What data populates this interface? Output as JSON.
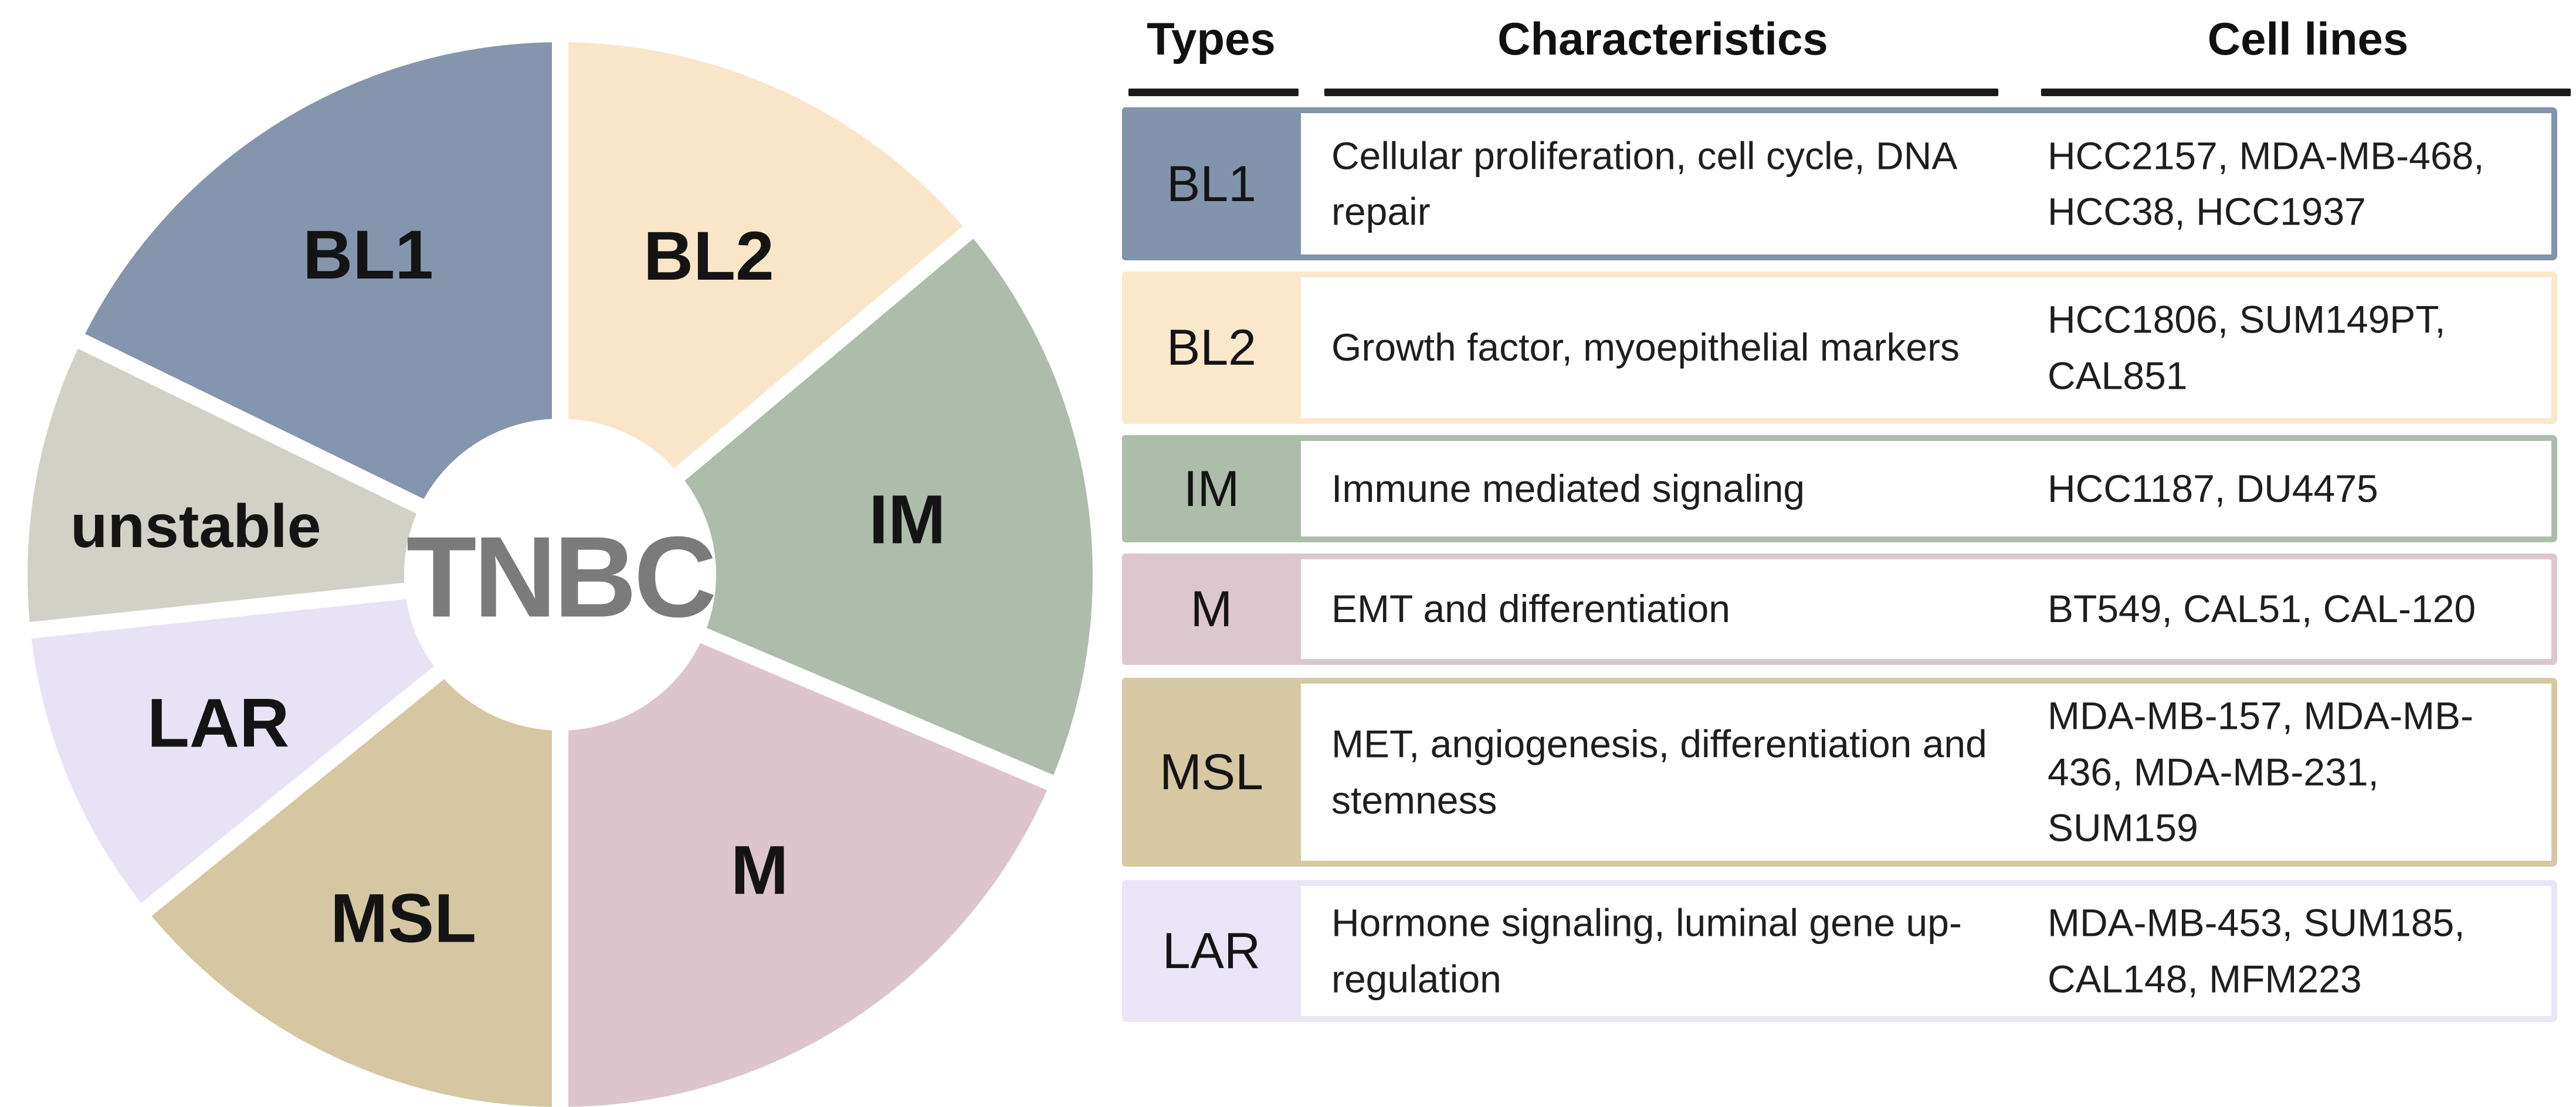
{
  "figure": {
    "center_label": "TNBC",
    "center_label_color": "#7b7b7b",
    "wedge_label_color": "#141414",
    "separator_color": "#ffffff",
    "segments": [
      {
        "label": "BL2",
        "color": "#f9e6c8",
        "start": 0,
        "end": 50,
        "label_angle": 25,
        "label_r": 0.66
      },
      {
        "label": "IM",
        "color": "#aebcab",
        "start": 50,
        "end": 113,
        "label_angle": 81,
        "label_r": 0.66
      },
      {
        "label": "M",
        "color": "#dcc5cc",
        "start": 113,
        "end": 180,
        "label_angle": 146,
        "label_r": 0.67
      },
      {
        "label": "MSL",
        "color": "#d4c7a1",
        "start": 180,
        "end": 231,
        "label_angle": 204.5,
        "label_r": 0.71
      },
      {
        "label": "LAR",
        "color": "#e7e3f4",
        "start": 231,
        "end": 264,
        "label_angle": 246.5,
        "label_r": 0.7
      },
      {
        "label": "unstable",
        "color": "#d2d1c7",
        "start": 264,
        "end": 296,
        "label_angle": 277.5,
        "label_r": 0.69
      },
      {
        "label": "BL1",
        "color": "#8595ad",
        "start": 296,
        "end": 360,
        "label_angle": 329,
        "label_r": 0.7
      }
    ]
  },
  "table": {
    "headers": [
      "Types",
      "Characteristics",
      "Cell lines"
    ],
    "rows": [
      {
        "type": "BL1",
        "color": "#8294ab",
        "characteristics": "Cellular proliferation, cell cycle, DNA repair",
        "cell_lines": "HCC2157, MDA-MB-468, HCC38, HCC1937"
      },
      {
        "type": "BL2",
        "color": "#fae8ca",
        "characteristics": "Growth factor, myoepithelial markers",
        "cell_lines": "HCC1806, SUM149PT, CAL851"
      },
      {
        "type": "IM",
        "color": "#aebcab",
        "characteristics": "Immune mediated signaling",
        "cell_lines": "HCC1187, DU4475"
      },
      {
        "type": "M",
        "color": "#ddc7ce",
        "characteristics": "EMT and differentiation",
        "cell_lines": "BT549, CAL51, CAL-120"
      },
      {
        "type": "MSL",
        "color": "#d5c8a2",
        "characteristics": "MET, angiogenesis, differentiation and stemness",
        "cell_lines": "MDA-MB-157, MDA-MB-436, MDA-MB-231, SUM159"
      },
      {
        "type": "LAR",
        "color": "#e9e5f6",
        "characteristics": "Hormone signaling, luminal gene up-regulation",
        "cell_lines": "MDA-MB-453, SUM185, CAL148, MFM223"
      }
    ]
  },
  "chart_data": [
    {
      "type": "pie",
      "title": "TNBC molecular subtypes wheel",
      "center_label": "TNBC",
      "donut": true,
      "categories": [
        "BL2",
        "IM",
        "M",
        "MSL",
        "LAR",
        "unstable",
        "BL1"
      ],
      "values_deg": [
        50,
        63,
        67,
        51,
        33,
        32,
        64
      ],
      "colors": [
        "#f9e6c8",
        "#aebcab",
        "#dcc5cc",
        "#d4c7a1",
        "#e7e3f4",
        "#d2d1c7",
        "#8595ad"
      ],
      "legend_position": "none",
      "grid": false
    },
    {
      "type": "table",
      "columns": [
        "Types",
        "Characteristics",
        "Cell lines"
      ],
      "rows": [
        [
          "BL1",
          "Cellular proliferation, cell cycle, DNA repair",
          "HCC2157, MDA-MB-468, HCC38, HCC1937"
        ],
        [
          "BL2",
          "Growth factor, myoepithelial markers",
          "HCC1806, SUM149PT, CAL851"
        ],
        [
          "IM",
          "Immune mediated signaling",
          "HCC1187, DU4475"
        ],
        [
          "M",
          "EMT and differentiation",
          "BT549, CAL51, CAL-120"
        ],
        [
          "MSL",
          "MET, angiogenesis, differentiation and stemness",
          "MDA-MB-157, MDA-MB-436, MDA-MB-231, SUM159"
        ],
        [
          "LAR",
          "Hormone signaling, luminal gene up-regulation",
          "MDA-MB-453, SUM185, CAL148, MFM223"
        ]
      ]
    }
  ]
}
